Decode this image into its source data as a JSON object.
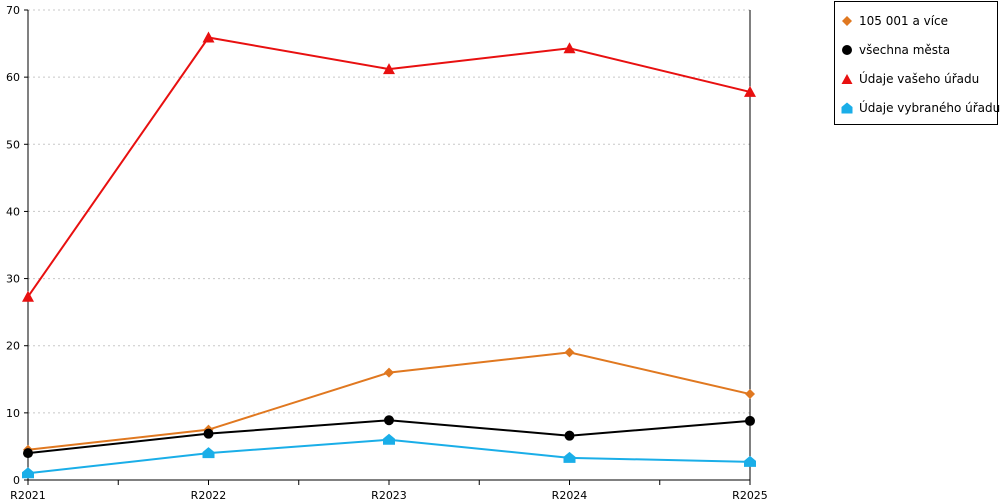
{
  "chart_data": {
    "type": "line",
    "categories": [
      "R2021",
      "R2022",
      "R2023",
      "R2024",
      "R2025"
    ],
    "ylim": [
      0,
      70
    ],
    "yticks": [
      0,
      10,
      20,
      30,
      40,
      50,
      60,
      70
    ],
    "grid": true,
    "legend_position": "top-right",
    "series": [
      {
        "name": "105 001 a více",
        "color": "#e07820",
        "marker": "diamond",
        "values": [
          4.5,
          7.5,
          16.0,
          19.0,
          12.8
        ]
      },
      {
        "name": "všechna města",
        "color": "#000000",
        "marker": "circle",
        "values": [
          4.0,
          6.9,
          8.9,
          6.6,
          8.8
        ]
      },
      {
        "name": "Údaje vašeho úřadu",
        "color": "#e81010",
        "marker": "triangle",
        "values": [
          27.3,
          65.9,
          61.2,
          64.3,
          57.8
        ]
      },
      {
        "name": "Údaje vybraného úřadu",
        "color": "#1aaee8",
        "marker": "house",
        "values": [
          1.0,
          4.0,
          6.0,
          3.3,
          2.7
        ]
      }
    ]
  }
}
